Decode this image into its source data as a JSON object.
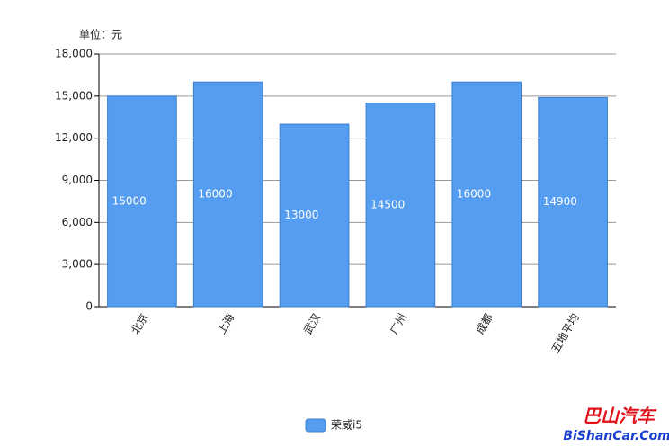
{
  "chart_data": {
    "type": "bar",
    "unit_label": "单位：元",
    "categories": [
      "北京",
      "上海",
      "武汉",
      "广州",
      "成都",
      "五地平均"
    ],
    "series": [
      {
        "name": "荣威i5",
        "color": "#559df0",
        "values": [
          15000,
          16000,
          13000,
          14500,
          16000,
          14900
        ]
      }
    ],
    "ylim": [
      0,
      18000
    ],
    "yticks": [
      0,
      {
        "value": 3000,
        "label": "3,000"
      },
      {
        "value": 6000,
        "label": "6,000"
      },
      {
        "value": 9000,
        "label": "9,000"
      },
      {
        "value": 12000,
        "label": "12,000"
      },
      {
        "value": 15000,
        "label": "15,000"
      },
      {
        "value": 18000,
        "label": "18,000"
      }
    ],
    "grid": true,
    "legend": "bottom",
    "watermark": {
      "title": "巴山汽车",
      "url": "BiShanCar.Com"
    }
  }
}
